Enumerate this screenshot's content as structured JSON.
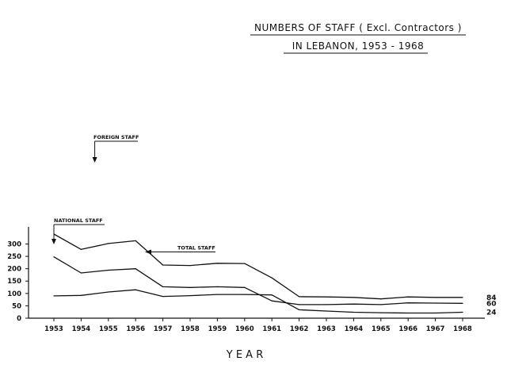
{
  "chart_data": {
    "type": "line",
    "title_line1": "NUMBERS OF STAFF ( Excl. Contractors )",
    "title_line2": "IN LEBANON, 1953 - 1968",
    "xlabel": "Y E A R",
    "ylabel": "",
    "categories": [
      "1953",
      "1954",
      "1955",
      "1956",
      "1957",
      "1958",
      "1959",
      "1960",
      "1961",
      "1962",
      "1963",
      "1964",
      "1965",
      "1966",
      "1967",
      "1968"
    ],
    "ylim": [
      0,
      350
    ],
    "yticks": [
      "0",
      "50",
      "100",
      "150",
      "200",
      "250",
      "300"
    ],
    "grid": false,
    "series": [
      {
        "name": "TOTAL STAFF",
        "values": [
          340,
          278,
          302,
          313,
          215,
          213,
          222,
          221,
          163,
          87,
          86,
          84,
          78,
          86,
          84,
          84
        ],
        "end_label": "84"
      },
      {
        "name": "FOREIGN STAFF",
        "values": [
          248,
          183,
          194,
          200,
          127,
          124,
          127,
          124,
          70,
          55,
          55,
          57,
          55,
          62,
          61,
          60
        ],
        "end_label": "60"
      },
      {
        "name": "NATIONAL STAFF",
        "values": [
          90,
          92,
          106,
          115,
          88,
          91,
          96,
          96,
          94,
          34,
          29,
          24,
          22,
          21,
          21,
          24
        ],
        "end_label": "24"
      }
    ]
  }
}
